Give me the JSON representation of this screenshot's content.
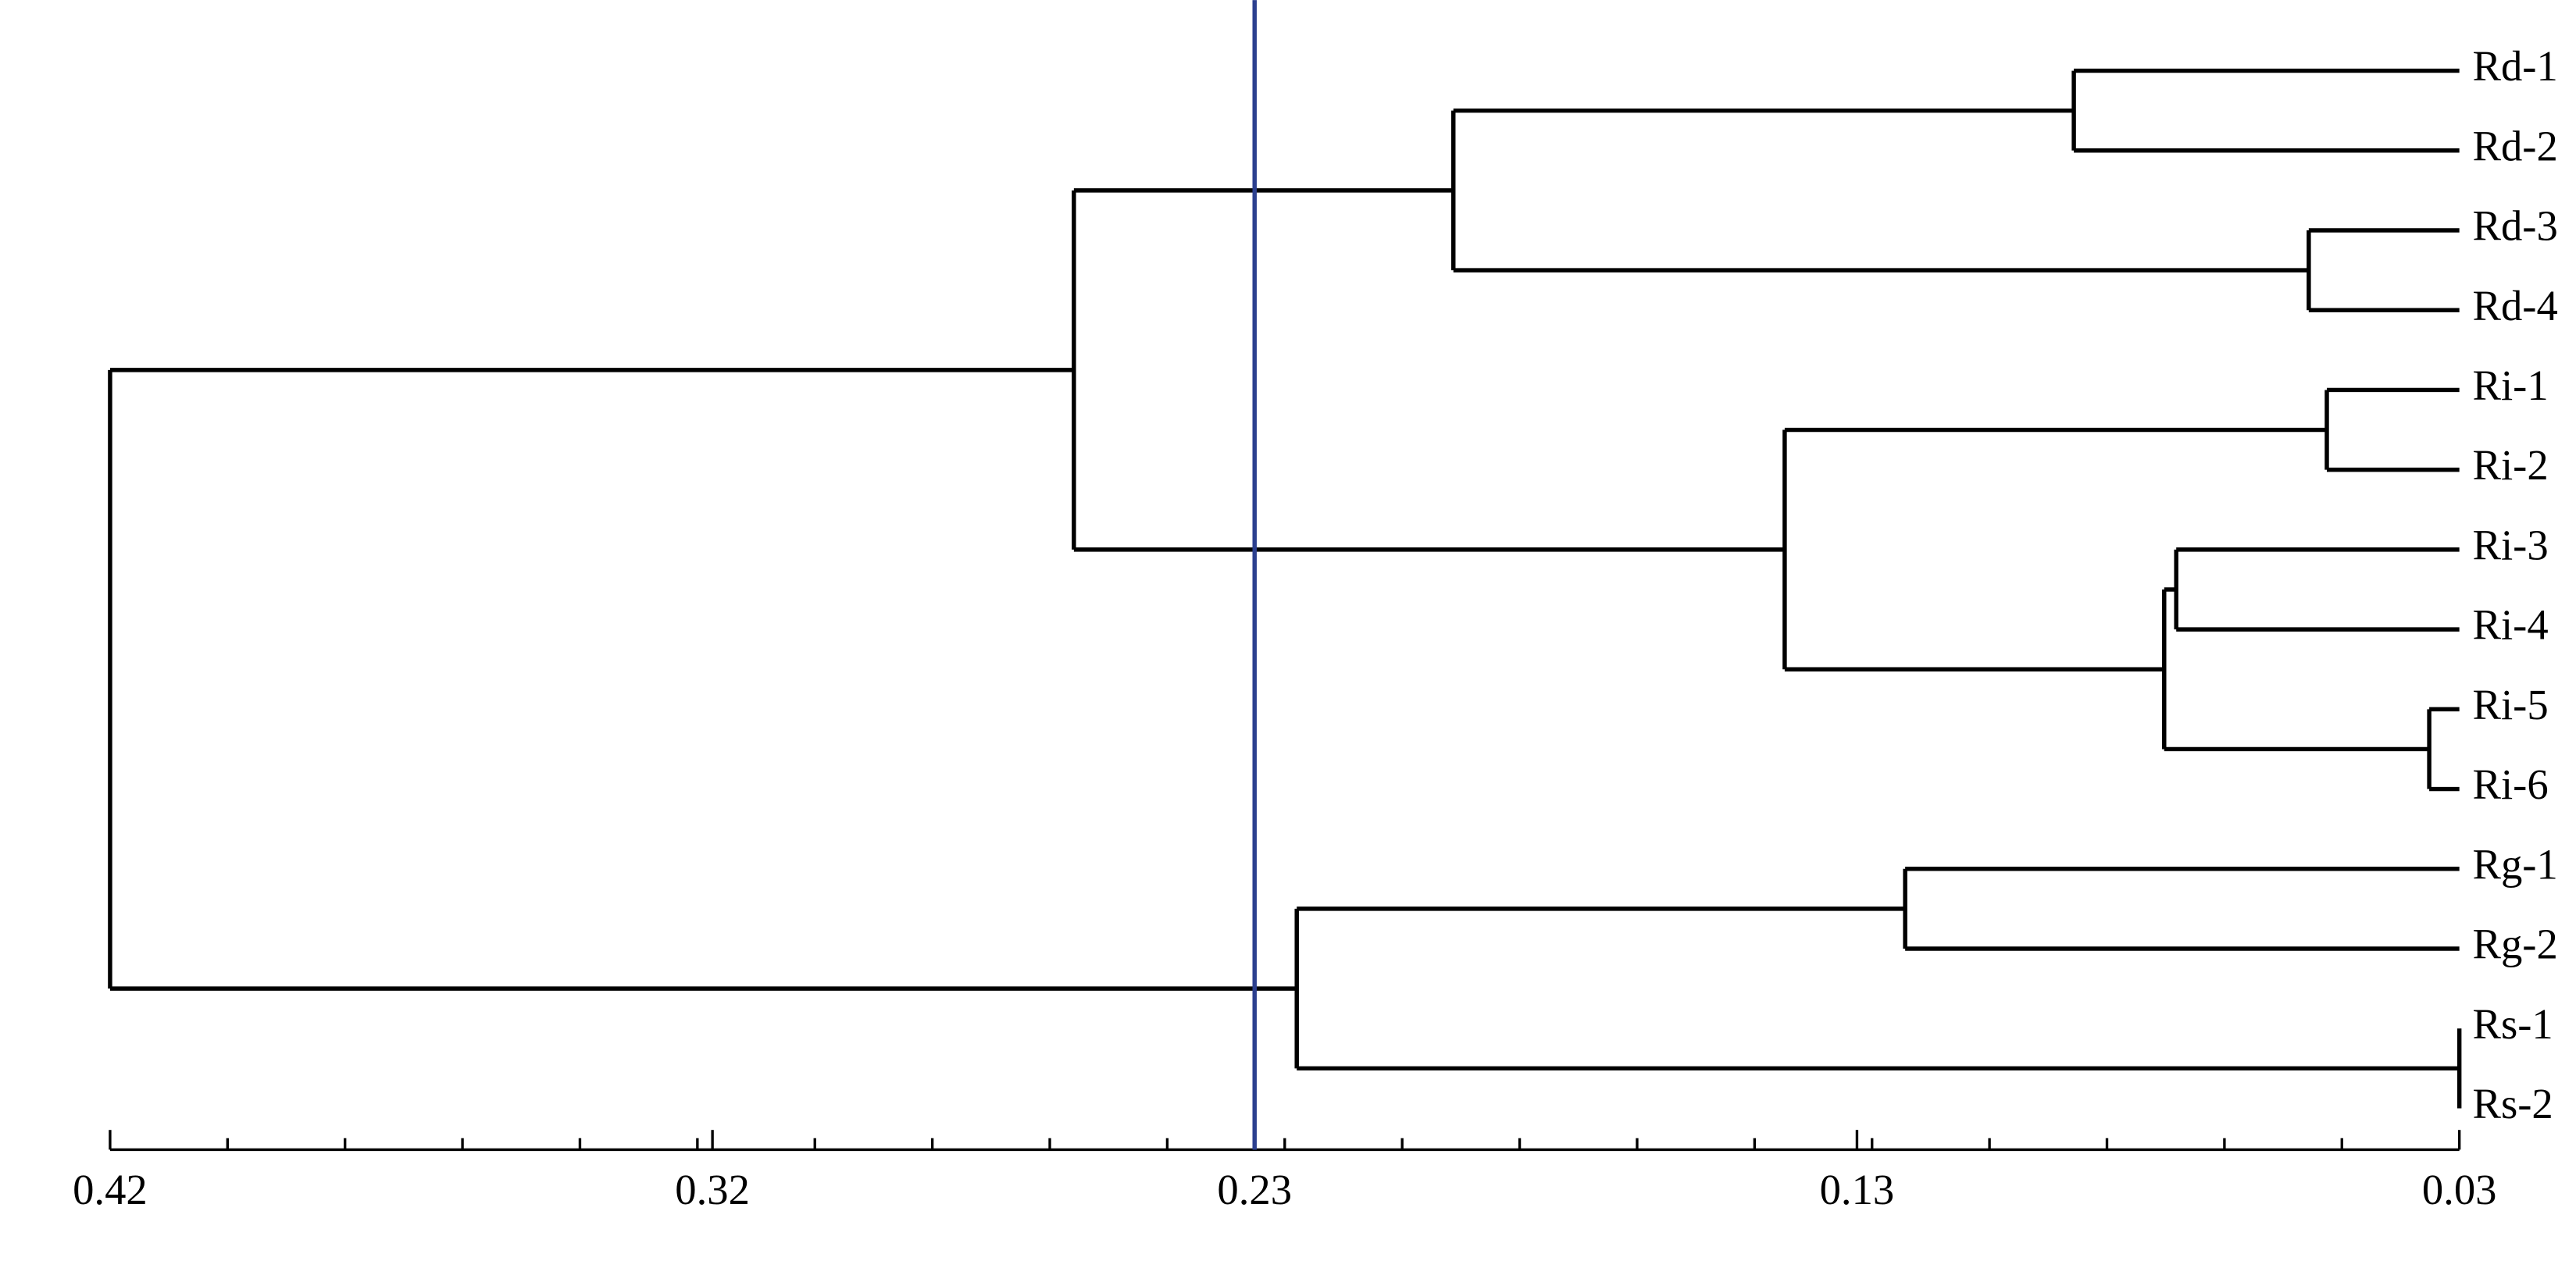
{
  "chart_data": {
    "type": "dendrogram",
    "orientation": "horizontal",
    "xlim": [
      0.42,
      0.03
    ],
    "xticks": [
      0.42,
      0.32,
      0.23,
      0.13,
      0.03
    ],
    "xminorticks": [
      0.4005,
      0.381,
      0.3615,
      0.342,
      0.3225,
      0.303,
      0.2835,
      0.264,
      0.2445,
      0.225,
      0.2055,
      0.186,
      0.1665,
      0.147,
      0.1275,
      0.108,
      0.0885,
      0.069,
      0.0495
    ],
    "threshold": {
      "value": 0.23,
      "color": "#2b3f8f"
    },
    "color": "#000000",
    "tree": {
      "height": 0.42,
      "children": [
        {
          "height": 0.26,
          "children": [
            {
              "height": 0.197,
              "children": [
                {
                  "height": 0.094,
                  "children": [
                    "Rd-1",
                    "Rd-2"
                  ]
                },
                {
                  "height": 0.055,
                  "children": [
                    "Rd-3",
                    "Rd-4"
                  ]
                }
              ]
            },
            {
              "height": 0.142,
              "children": [
                {
                  "height": 0.052,
                  "children": [
                    "Ri-1",
                    "Ri-2"
                  ]
                },
                {
                  "height": 0.079,
                  "children": [
                    {
                      "height": 0.077,
                      "children": [
                        "Ri-3",
                        "Ri-4"
                      ]
                    },
                    {
                      "height": 0.035,
                      "children": [
                        "Ri-5",
                        "Ri-6"
                      ]
                    }
                  ]
                }
              ]
            }
          ]
        },
        {
          "height": 0.223,
          "children": [
            {
              "height": 0.122,
              "children": [
                "Rg-1",
                "Rg-2"
              ]
            },
            {
              "height": 0.03,
              "children": [
                "Rs-1",
                "Rs-2"
              ]
            }
          ]
        }
      ]
    }
  }
}
